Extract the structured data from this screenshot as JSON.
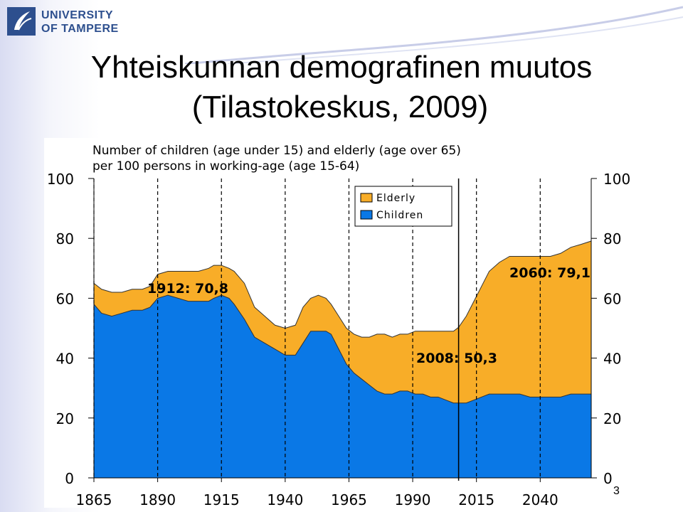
{
  "logo": {
    "line1": "UNIVERSITY",
    "line2": "OF TAMPERE"
  },
  "slide": {
    "title_line1": "Yhteiskunnan demografinen muutos",
    "title_line2": "(Tilastokeskus, 2009)",
    "page_number": "3"
  },
  "colors": {
    "elderly": "#f8ad28",
    "children": "#0a78e6",
    "logo": "#2d4f8e"
  },
  "chart_data": {
    "type": "area",
    "stacked": true,
    "title": "Number of children (age under 15) and elderly (age over 65)",
    "subtitle": "per 100 persons in working-age (age 15-64)",
    "xlim": [
      1865,
      2060
    ],
    "ylim": [
      0,
      100
    ],
    "x_ticks": [
      1865,
      1890,
      1915,
      1940,
      1965,
      1990,
      2015,
      2040
    ],
    "y_ticks": [
      0,
      20,
      40,
      60,
      80,
      100
    ],
    "grid": {
      "vertical_dashed": true,
      "horizontal_dashed": false
    },
    "legend": {
      "position": "top-center",
      "entries": [
        "Elderly",
        "Children"
      ]
    },
    "x": [
      1865,
      1868,
      1872,
      1876,
      1880,
      1884,
      1887,
      1890,
      1894,
      1898,
      1902,
      1906,
      1910,
      1912,
      1915,
      1918,
      1920,
      1924,
      1928,
      1932,
      1936,
      1940,
      1944,
      1947,
      1950,
      1953,
      1956,
      1958,
      1961,
      1964,
      1967,
      1970,
      1973,
      1976,
      1979,
      1982,
      1985,
      1988,
      1991,
      1994,
      1997,
      2000,
      2003,
      2006,
      2008,
      2011,
      2014,
      2017,
      2020,
      2024,
      2028,
      2032,
      2036,
      2040,
      2044,
      2048,
      2052,
      2056,
      2060
    ],
    "series": [
      {
        "name": "Children",
        "values": [
          58,
          55,
          54,
          55,
          56,
          56,
          57,
          60,
          61,
          60,
          59,
          59,
          59,
          60,
          61,
          60,
          58,
          53,
          47,
          45,
          43,
          41,
          41,
          45,
          49,
          49,
          49,
          48,
          43,
          38,
          35,
          33,
          31,
          29,
          28,
          28,
          29,
          29,
          28,
          28,
          27,
          27,
          26,
          25,
          25,
          25,
          26,
          27,
          28,
          28,
          28,
          28,
          27,
          27,
          27,
          27,
          28,
          28,
          28
        ]
      },
      {
        "name": "Elderly",
        "values": [
          7,
          8,
          8,
          7,
          7,
          7,
          7,
          8,
          8,
          9,
          10,
          10,
          11,
          11,
          10,
          10,
          11,
          12,
          10,
          9,
          8,
          9,
          10,
          12,
          11,
          12,
          11,
          10,
          11,
          12,
          13,
          14,
          16,
          19,
          20,
          19,
          19,
          19,
          21,
          21,
          22,
          22,
          23,
          24,
          25.3,
          29,
          33,
          37,
          41,
          44,
          46,
          46,
          47,
          47,
          47,
          48,
          49,
          50,
          51.1
        ]
      }
    ],
    "annotations": [
      {
        "label": "1912: 70,8",
        "x": 1912,
        "y": 70.8
      },
      {
        "label": "2008: 50,3",
        "x": 2008,
        "y": 50.3
      },
      {
        "label": "2060: 79,1",
        "x": 2060,
        "y": 79.1
      }
    ],
    "marker_line_year": 2008
  }
}
